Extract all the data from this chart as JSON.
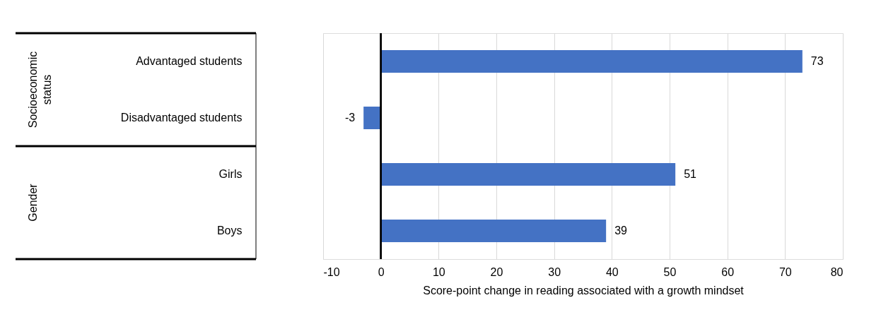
{
  "chart_data": {
    "type": "bar",
    "orientation": "horizontal",
    "categories": [
      "Advantaged students",
      "Disadvantaged students",
      "Girls",
      "Boys"
    ],
    "values": [
      73,
      -3,
      51,
      39
    ],
    "color": "#4472c4",
    "xlabel": "Score-point change in reading associated with a growth mindset",
    "xlim": [
      -10,
      80
    ],
    "xticks": [
      -10,
      0,
      10,
      20,
      30,
      40,
      50,
      60,
      70,
      80
    ],
    "grid": "x",
    "data_labels": true,
    "annotations": [
      "Socioeconomic status",
      "Gender"
    ]
  }
}
